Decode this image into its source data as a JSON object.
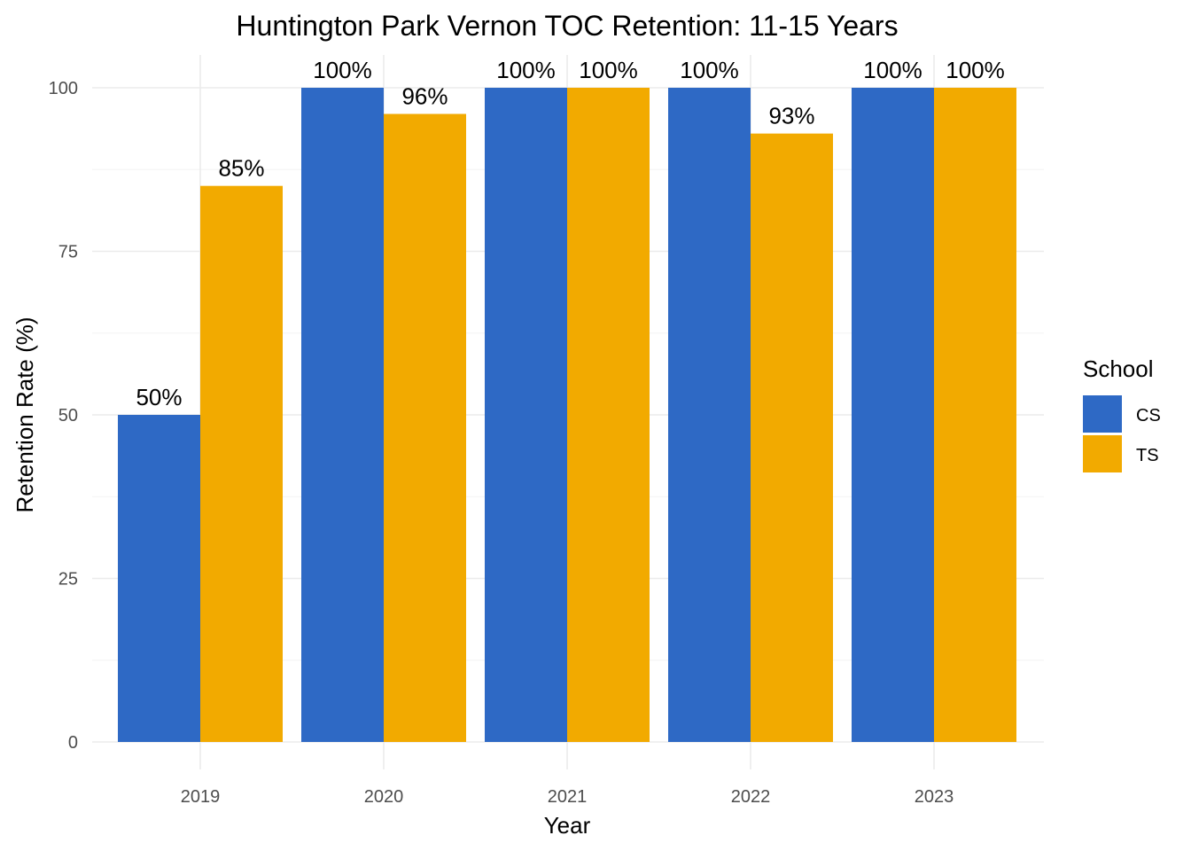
{
  "chart_data": {
    "type": "bar",
    "title": "Huntington Park Vernon TOC Retention: 11-15 Years",
    "xlabel": "Year",
    "ylabel": "Retention Rate (%)",
    "categories": [
      "2019",
      "2020",
      "2021",
      "2022",
      "2023"
    ],
    "series": [
      {
        "name": "CS",
        "color": "#2e69c5",
        "values": [
          50,
          100,
          100,
          100,
          100
        ],
        "labels": [
          "50%",
          "100%",
          "100%",
          "100%",
          "100%"
        ]
      },
      {
        "name": "TS",
        "color": "#f2aa00",
        "values": [
          85,
          96,
          100,
          93,
          100
        ],
        "labels": [
          "85%",
          "96%",
          "100%",
          "93%",
          "100%"
        ]
      }
    ],
    "ylim": [
      0,
      100
    ],
    "yticks": [
      0,
      25,
      50,
      75,
      100
    ],
    "ytick_labels": [
      "0",
      "25",
      "50",
      "75",
      "100"
    ],
    "grid": true,
    "legend": {
      "title": "School",
      "position": "right"
    }
  }
}
